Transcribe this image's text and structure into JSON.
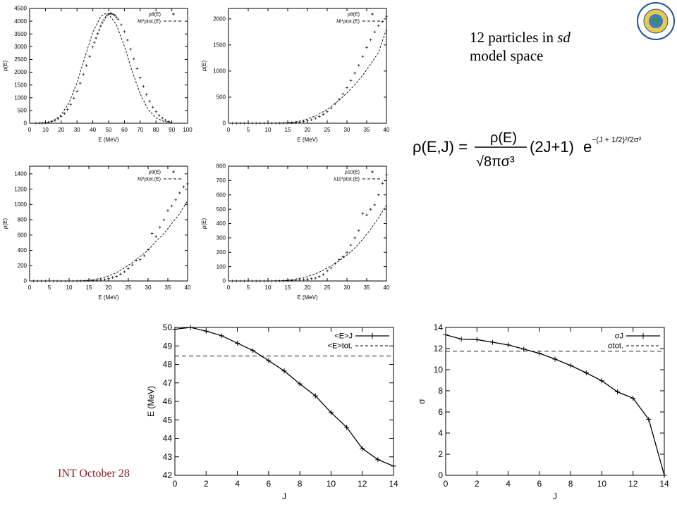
{
  "caption": {
    "line1_prefix": "12 particles in ",
    "line1_ital": "sd",
    "line2": "model space"
  },
  "footer": "INT  October 28",
  "formula": {
    "lhs": "ρ(E,J) = ",
    "num": "ρ(E)",
    "den": "√8πσ³",
    "mid": "(2J+1)",
    "base": "e",
    "exp": "−(J + 1/2)²/2σ²"
  },
  "seal": {
    "text": "NATIONAL SCIENCE FOUNDATION",
    "icon": "nsf-seal-icon",
    "color": "#1f4e9e"
  },
  "chart_data": [
    {
      "type": "line",
      "xlabel": "E (MeV)",
      "ylabel": "ρ(E)",
      "xlim": [
        0,
        100
      ],
      "ylim": [
        0,
        4500
      ],
      "xticks": [
        0,
        10,
        20,
        30,
        40,
        50,
        60,
        70,
        80,
        90,
        100
      ],
      "yticks": [
        0,
        500,
        1000,
        1500,
        2000,
        2500,
        3000,
        3500,
        4000,
        4500
      ],
      "legend": [
        "ρ8(E)",
        "λ6*ρtot.(E)"
      ],
      "legend_position": "top-right",
      "series": [
        {
          "name": "ρ8(E)",
          "style": "points",
          "x": [
            4,
            6,
            8,
            10,
            12,
            14,
            16,
            18,
            20,
            22,
            24,
            26,
            28,
            30,
            32,
            34,
            36,
            38,
            40,
            41,
            42,
            43,
            44,
            45,
            46,
            47,
            48,
            49,
            50,
            51,
            52,
            53,
            54,
            55,
            56,
            58,
            60,
            62,
            64,
            66,
            68,
            70,
            72,
            74,
            76,
            78,
            80,
            82,
            84,
            86,
            88
          ],
          "y": [
            2,
            5,
            10,
            20,
            37,
            64,
            106,
            170,
            260,
            380,
            540,
            740,
            980,
            1260,
            1570,
            1910,
            2260,
            2620,
            2990,
            3170,
            3340,
            3510,
            3660,
            3810,
            3940,
            4050,
            4150,
            4230,
            4280,
            4300,
            4290,
            4270,
            4230,
            4160,
            4080,
            3860,
            3590,
            3260,
            2900,
            2520,
            2140,
            1780,
            1440,
            1130,
            860,
            630,
            450,
            310,
            200,
            120,
            70
          ]
        },
        {
          "name": "λ6*ρtot.(E)",
          "style": "dashed",
          "x": [
            0,
            5,
            10,
            15,
            20,
            25,
            30,
            35,
            40,
            45,
            48,
            50,
            55,
            60,
            65,
            70,
            75,
            80,
            85,
            90
          ],
          "y": [
            0,
            3,
            20,
            100,
            330,
            810,
            1590,
            2590,
            3570,
            4180,
            4300,
            4280,
            3860,
            3020,
            2020,
            1150,
            540,
            210,
            70,
            20
          ]
        }
      ]
    },
    {
      "type": "line",
      "xlabel": "E (MeV)",
      "ylabel": "ρ(E)",
      "xlim": [
        0,
        40
      ],
      "ylim": [
        0,
        2200
      ],
      "xticks": [
        0,
        5,
        10,
        15,
        20,
        25,
        30,
        35,
        40
      ],
      "yticks": [
        0,
        500,
        1000,
        1500,
        2000
      ],
      "legend": [
        "ρ8(E)",
        "λ8*ρtot.(E)"
      ],
      "legend_position": "top-right",
      "series": [
        {
          "name": "ρ8(E)",
          "style": "points",
          "x": [
            1,
            2,
            3,
            4,
            5,
            6,
            7,
            8,
            9,
            10,
            11,
            12,
            13,
            14,
            15,
            16,
            17,
            18,
            19,
            20,
            21,
            22,
            23,
            24,
            25,
            26,
            27,
            28,
            29,
            30,
            31,
            32,
            33,
            34,
            35,
            36,
            37,
            38,
            39,
            40
          ],
          "y": [
            0,
            0,
            0,
            0,
            0,
            0,
            0,
            0,
            0,
            0,
            0,
            1,
            2,
            3,
            5,
            8,
            12,
            20,
            30,
            45,
            65,
            95,
            130,
            170,
            220,
            290,
            370,
            460,
            560,
            680,
            820,
            960,
            1110,
            1280,
            1450,
            1600,
            1750,
            1870,
            1950,
            2050
          ]
        },
        {
          "name": "λ8*ρtot.(E)",
          "style": "dashed",
          "x": [
            0,
            5,
            10,
            14,
            16,
            18,
            20,
            22,
            24,
            26,
            28,
            30,
            32,
            34,
            36,
            38,
            40
          ],
          "y": [
            0,
            0,
            0,
            5,
            15,
            40,
            80,
            140,
            220,
            320,
            440,
            580,
            740,
            920,
            1130,
            1360,
            1800
          ]
        }
      ]
    },
    {
      "type": "line",
      "xlabel": "E (MeV)",
      "ylabel": "ρ(E)",
      "xlim": [
        0,
        40
      ],
      "ylim": [
        0,
        1500
      ],
      "xticks": [
        0,
        5,
        10,
        15,
        20,
        25,
        30,
        35,
        40
      ],
      "yticks": [
        0,
        200,
        400,
        600,
        800,
        1000,
        1200,
        1400
      ],
      "legend": [
        "ρ9(E)",
        "λ9*ρtot.(E)"
      ],
      "legend_position": "top-right",
      "series": [
        {
          "name": "ρ9(E)",
          "style": "points",
          "x": [
            1,
            2,
            3,
            4,
            5,
            6,
            7,
            8,
            9,
            10,
            11,
            12,
            13,
            14,
            15,
            16,
            17,
            18,
            19,
            20,
            21,
            22,
            23,
            24,
            25,
            26,
            27,
            28,
            29,
            30,
            31,
            32,
            33,
            34,
            35,
            36,
            37,
            38,
            39,
            40
          ],
          "y": [
            0,
            0,
            0,
            0,
            0,
            0,
            0,
            0,
            0,
            0,
            0,
            0,
            1,
            2,
            4,
            6,
            10,
            15,
            20,
            30,
            45,
            60,
            90,
            120,
            160,
            210,
            270,
            280,
            330,
            410,
            620,
            580,
            700,
            800,
            920,
            980,
            1060,
            1150,
            1230,
            1270
          ]
        },
        {
          "name": "λ9*ρtot.(E)",
          "style": "dashed",
          "x": [
            0,
            5,
            10,
            14,
            16,
            18,
            20,
            22,
            24,
            26,
            28,
            30,
            32,
            34,
            36,
            38,
            40
          ],
          "y": [
            0,
            0,
            0,
            5,
            15,
            35,
            65,
            110,
            170,
            240,
            320,
            400,
            520,
            620,
            750,
            880,
            1050
          ]
        }
      ]
    },
    {
      "type": "line",
      "xlabel": "E (MeV)",
      "ylabel": "ρ(E)",
      "xlim": [
        0,
        40
      ],
      "ylim": [
        0,
        800
      ],
      "xticks": [
        0,
        5,
        10,
        15,
        20,
        25,
        30,
        35,
        40
      ],
      "yticks": [
        0,
        100,
        200,
        300,
        400,
        500,
        600,
        700,
        800
      ],
      "legend": [
        "ρ10(E)",
        "λ10*ρtot.(E)"
      ],
      "legend_position": "top-right",
      "series": [
        {
          "name": "ρ10(E)",
          "style": "points",
          "x": [
            1,
            2,
            3,
            4,
            5,
            6,
            7,
            8,
            9,
            10,
            11,
            12,
            13,
            14,
            15,
            16,
            17,
            18,
            19,
            20,
            21,
            22,
            23,
            24,
            25,
            26,
            27,
            28,
            29,
            30,
            31,
            32,
            33,
            34,
            35,
            36,
            37,
            38,
            39,
            40
          ],
          "y": [
            0,
            0,
            0,
            0,
            0,
            0,
            0,
            0,
            0,
            0,
            0,
            0,
            1,
            2,
            3,
            4,
            6,
            8,
            10,
            12,
            16,
            20,
            30,
            45,
            70,
            90,
            120,
            150,
            170,
            200,
            250,
            300,
            350,
            470,
            460,
            500,
            530,
            600,
            680,
            740
          ]
        },
        {
          "name": "λ10*ρtot.(E)",
          "style": "dashed",
          "x": [
            0,
            5,
            10,
            14,
            16,
            18,
            20,
            22,
            24,
            26,
            28,
            30,
            32,
            34,
            36,
            38,
            40
          ],
          "y": [
            0,
            0,
            0,
            3,
            8,
            18,
            30,
            50,
            75,
            105,
            140,
            180,
            230,
            290,
            360,
            440,
            530
          ]
        }
      ]
    },
    {
      "type": "line",
      "xlabel": "J",
      "ylabel": "E (MeV)",
      "xlim": [
        0,
        14
      ],
      "ylim": [
        42,
        50
      ],
      "xticks": [
        0,
        2,
        4,
        6,
        8,
        10,
        12,
        14
      ],
      "yticks": [
        42,
        43,
        44,
        45,
        46,
        47,
        48,
        49,
        50
      ],
      "legend": [
        "<E>J",
        "<E>tot."
      ],
      "legend_position": "top-right",
      "series": [
        {
          "name": "<E>J",
          "style": "line-marks",
          "x": [
            0,
            1,
            2,
            3,
            4,
            5,
            6,
            7,
            8,
            9,
            10,
            11,
            12,
            13,
            14
          ],
          "y": [
            49.9,
            50.0,
            49.8,
            49.55,
            49.15,
            48.75,
            48.2,
            47.65,
            46.95,
            46.3,
            45.4,
            44.6,
            43.45,
            42.85,
            42.5
          ]
        },
        {
          "name": "<E>tot.",
          "style": "dashed",
          "x": [
            0,
            14
          ],
          "y": [
            48.45,
            48.45
          ]
        }
      ]
    },
    {
      "type": "line",
      "xlabel": "J",
      "ylabel": "σ",
      "xlim": [
        0,
        14
      ],
      "ylim": [
        0,
        14
      ],
      "xticks": [
        0,
        2,
        4,
        6,
        8,
        10,
        12,
        14
      ],
      "yticks": [
        0,
        2,
        4,
        6,
        8,
        10,
        12,
        14
      ],
      "legend": [
        "σJ",
        "σtot."
      ],
      "legend_position": "top-right",
      "series": [
        {
          "name": "σJ",
          "style": "line-marks",
          "x": [
            0,
            1,
            2,
            3,
            4,
            5,
            6,
            7,
            8,
            9,
            10,
            11,
            12,
            13,
            14
          ],
          "y": [
            13.3,
            12.9,
            12.85,
            12.6,
            12.35,
            11.95,
            11.55,
            11.0,
            10.4,
            9.7,
            8.95,
            7.9,
            7.3,
            5.3,
            0.0
          ]
        },
        {
          "name": "σtot.",
          "style": "dashed",
          "x": [
            0,
            14
          ],
          "y": [
            11.75,
            11.75
          ]
        }
      ]
    }
  ]
}
